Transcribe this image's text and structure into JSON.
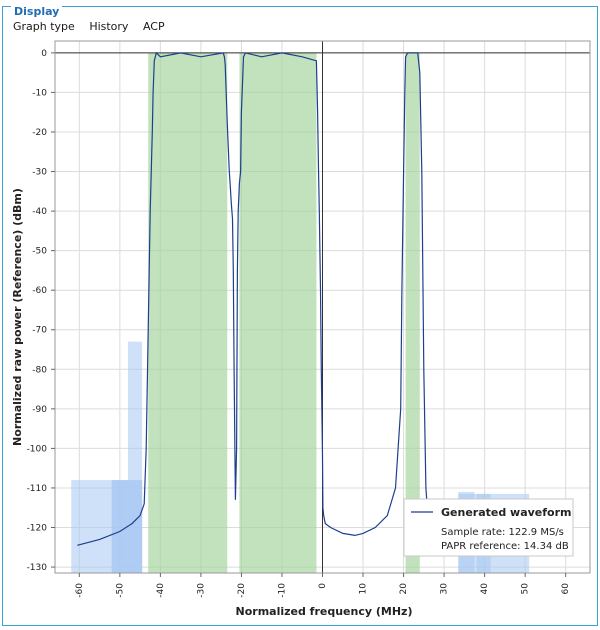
{
  "panel": {
    "title": "Display"
  },
  "menu": {
    "graph_type": "Graph type",
    "history": "History",
    "acp": "ACP"
  },
  "colors": {
    "curve": "#1e3f8f",
    "channel_band": "#9fd39a",
    "adjacent_band": "#a7c9f2",
    "panel_border": "#3aa3d6"
  },
  "chart_data": {
    "type": "line",
    "xlabel": "Normalized frequency (MHz)",
    "ylabel": "Normalized raw power (Reference) (dBm)",
    "xlim": [
      -66,
      66
    ],
    "ylim": [
      -131.5,
      3
    ],
    "xticks": [
      -60,
      -50,
      -40,
      -30,
      -20,
      -10,
      0,
      10,
      20,
      30,
      40,
      50,
      60
    ],
    "yticks": [
      0,
      -10,
      -20,
      -30,
      -40,
      -50,
      -60,
      -70,
      -80,
      -90,
      -100,
      -110,
      -120,
      -130
    ],
    "grid": true,
    "series": [
      {
        "name": "Generated waveform",
        "x": [
          -60.5,
          -55,
          -50,
          -47,
          -45,
          -44,
          -43.5,
          -43,
          -42.5,
          -42,
          -41.8,
          -41.5,
          -41,
          -40,
          -35,
          -30,
          -24.5,
          -24.2,
          -24,
          -23.5,
          -23,
          -22.8,
          -22.5,
          -22.2,
          -22,
          -21.8,
          -21.5,
          -21.2,
          -21,
          -20.8,
          -20.5,
          -20.2,
          -20,
          -19.5,
          -19,
          -15,
          -10,
          -5,
          -1.5,
          -1.2,
          -1,
          -0.8,
          -0.5,
          -0.3,
          0,
          0.1,
          0.3,
          0.7,
          2,
          5,
          8,
          10,
          13,
          16,
          18,
          19.3,
          19.6,
          20,
          20.3,
          20.5,
          21,
          22,
          23.5,
          24,
          24.5,
          25,
          25.5,
          26,
          27
        ],
        "y": [
          -124.5,
          -123,
          -121,
          -119,
          -117,
          -114,
          -100,
          -70,
          -40,
          -20,
          -10,
          -2,
          0,
          -1,
          0,
          -1,
          0,
          -1,
          -3,
          -18,
          -30,
          -33,
          -38,
          -42,
          -55,
          -80,
          -113,
          -100,
          -55,
          -40,
          -33,
          -30,
          -15,
          -1,
          0,
          -1,
          0,
          -1,
          -2,
          -15,
          -28,
          -40,
          -60,
          -80,
          -102,
          -115,
          -117,
          -119,
          -120,
          -121.5,
          -122,
          -121.5,
          -120,
          -117,
          -110,
          -90,
          -60,
          -30,
          -10,
          -1,
          0,
          0,
          0,
          -5,
          -30,
          -80,
          -110,
          -117,
          -119
        ]
      }
    ],
    "channel_bands": [
      {
        "x": [
          -43,
          -23.5
        ],
        "top": 0
      },
      {
        "x": [
          -20.5,
          -1.5
        ],
        "top": 0
      },
      {
        "x": [
          20.5,
          24
        ],
        "top": 0
      }
    ],
    "adjacent_bands": [
      {
        "x": [
          -62,
          -44.5
        ],
        "top": -108
      },
      {
        "x": [
          -52,
          -44.5
        ],
        "top": -108
      },
      {
        "x": [
          -48,
          -44.5
        ],
        "top": -73
      },
      {
        "x": [
          -52,
          -48
        ],
        "top": -108
      },
      {
        "x": [
          33.5,
          51
        ],
        "top": -111.5
      },
      {
        "x": [
          33.5,
          37.5
        ],
        "top": -111
      },
      {
        "x": [
          38,
          41.5
        ],
        "top": -111.5
      }
    ],
    "legend": {
      "title": "Generated waveform",
      "lines": [
        "Sample rate: 122.9 MS/s",
        "PAPR reference: 14.34 dB"
      ]
    }
  }
}
